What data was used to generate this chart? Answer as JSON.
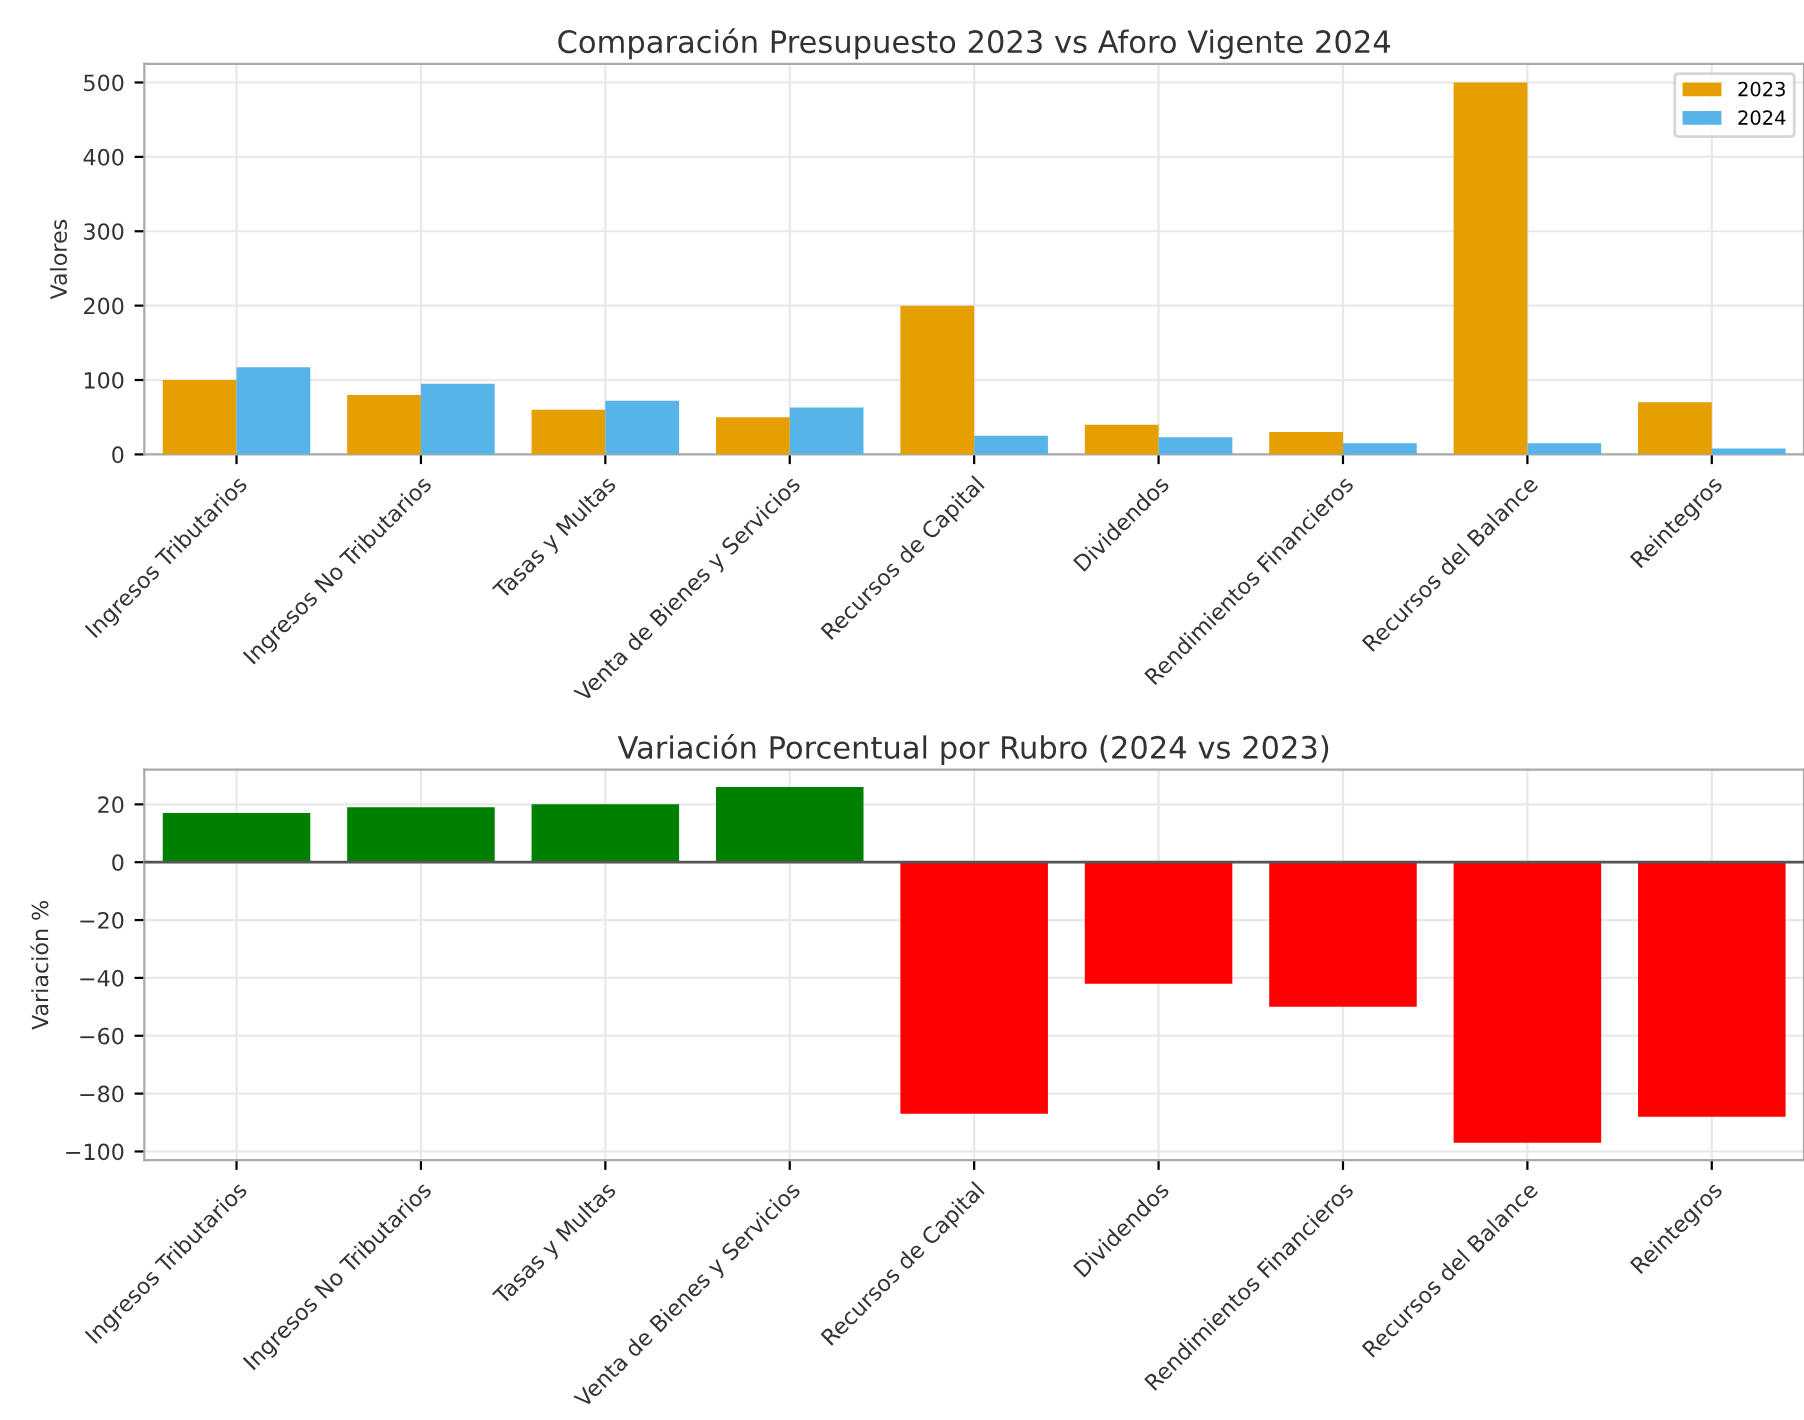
{
  "chart_data": [
    {
      "type": "bar",
      "title": "Comparación Presupuesto 2023 vs Aforo Vigente 2024",
      "ylabel": "Valores",
      "categories": [
        "Ingresos Tributarios",
        "Ingresos No Tributarios",
        "Tasas y Multas",
        "Venta de Bienes y Servicios",
        "Recursos de Capital",
        "Dividendos",
        "Rendimientos Financieros",
        "Recursos del Balance",
        "Reintegros"
      ],
      "series": [
        {
          "name": "2023",
          "color": "#e69f00",
          "values": [
            100,
            80,
            60,
            50,
            200,
            40,
            30,
            500,
            70
          ]
        },
        {
          "name": "2024",
          "color": "#56b4e9",
          "values": [
            117,
            95,
            72,
            63,
            25,
            23,
            15,
            15,
            8
          ]
        }
      ],
      "ylim": [
        0,
        525
      ],
      "yticks": [
        0,
        100,
        200,
        300,
        400,
        500
      ],
      "grid": true,
      "legend": "top right"
    },
    {
      "type": "bar",
      "title": "Variación Porcentual por Rubro (2024 vs 2023)",
      "ylabel": "Variación %",
      "categories": [
        "Ingresos Tributarios",
        "Ingresos No Tributarios",
        "Tasas y Multas",
        "Venta de Bienes y Servicios",
        "Recursos de Capital",
        "Dividendos",
        "Rendimientos Financieros",
        "Recursos del Balance",
        "Reintegros"
      ],
      "values": [
        17,
        19,
        20,
        26,
        -87,
        -42,
        -50,
        -97,
        -88
      ],
      "colors": [
        "#008000",
        "#008000",
        "#008000",
        "#008000",
        "#ff0000",
        "#ff0000",
        "#ff0000",
        "#ff0000",
        "#ff0000"
      ],
      "ref_lines": [
        {
          "axis": "y",
          "value": 0,
          "color": "#555555"
        }
      ],
      "ylim": [
        -103,
        32
      ],
      "yticks": [
        {
          "value": 20,
          "label": "20"
        },
        {
          "value": 0,
          "label": "0"
        },
        {
          "value": -20,
          "label": "−20"
        },
        {
          "value": -40,
          "label": "−40"
        },
        {
          "value": -60,
          "label": "−60"
        },
        {
          "value": -80,
          "label": "−80"
        },
        {
          "value": -100,
          "label": "−100"
        }
      ],
      "grid": true
    }
  ]
}
